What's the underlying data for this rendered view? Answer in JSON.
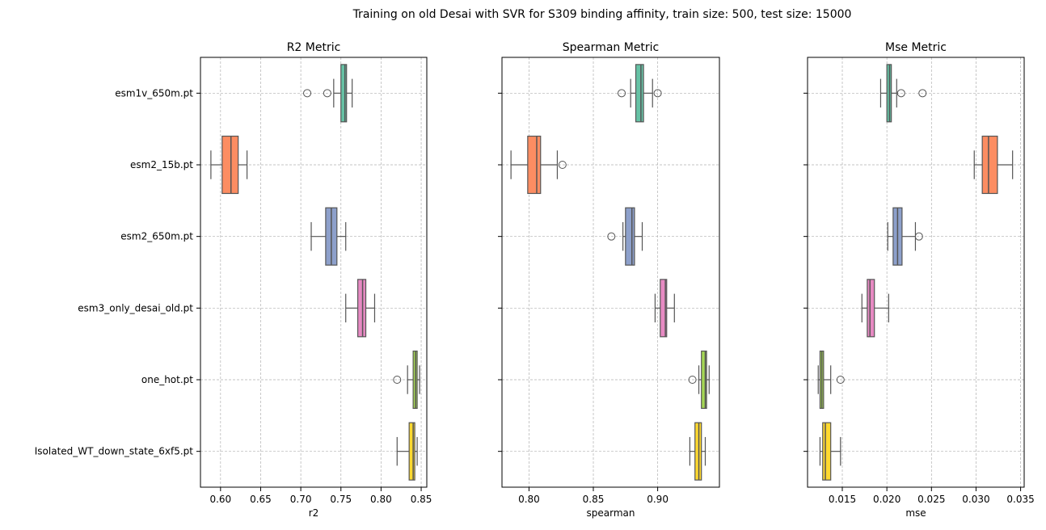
{
  "chart_data": {
    "type": "box",
    "suptitle": "Training on old Desai with SVR for S309 binding affinity, train size: 500, test size: 15000",
    "categories": [
      "esm1v_650m.pt",
      "esm2_15b.pt",
      "esm2_650m.pt",
      "esm3_only_desai_old.pt",
      "one_hot.pt",
      "Isolated_WT_down_state_6xf5.pt"
    ],
    "colors": [
      "#66c2a5",
      "#fc8d62",
      "#8da0cb",
      "#e78ac3",
      "#a6d854",
      "#ffd92f"
    ],
    "grid": true,
    "legend": "none",
    "panels": [
      {
        "title": "R2 Metric",
        "xlabel": "r2",
        "xlim": [
          0.575,
          0.857
        ],
        "xticks": [
          0.6,
          0.65,
          0.7,
          0.75,
          0.8,
          0.85
        ],
        "xtick_labels": [
          "0.60",
          "0.65",
          "0.70",
          "0.75",
          "0.80",
          "0.85"
        ],
        "boxes": [
          {
            "category": "esm1v_650m.pt",
            "whisker_low": 0.741,
            "q1": 0.75,
            "median": 0.755,
            "q3": 0.757,
            "whisker_high": 0.764,
            "outliers": [
              0.708,
              0.733
            ]
          },
          {
            "category": "esm2_15b.pt",
            "whisker_low": 0.588,
            "q1": 0.602,
            "median": 0.613,
            "q3": 0.622,
            "whisker_high": 0.633,
            "outliers": []
          },
          {
            "category": "esm2_650m.pt",
            "whisker_low": 0.713,
            "q1": 0.731,
            "median": 0.738,
            "q3": 0.745,
            "whisker_high": 0.756,
            "outliers": []
          },
          {
            "category": "esm3_only_desai_old.pt",
            "whisker_low": 0.756,
            "q1": 0.771,
            "median": 0.777,
            "q3": 0.781,
            "whisker_high": 0.792,
            "outliers": []
          },
          {
            "category": "one_hot.pt",
            "whisker_low": 0.833,
            "q1": 0.84,
            "median": 0.843,
            "q3": 0.845,
            "whisker_high": 0.848,
            "outliers": [
              0.82
            ]
          },
          {
            "category": "Isolated_WT_down_state_6xf5.pt",
            "whisker_low": 0.82,
            "q1": 0.835,
            "median": 0.84,
            "q3": 0.842,
            "whisker_high": 0.845,
            "outliers": []
          }
        ]
      },
      {
        "title": "Spearman Metric",
        "xlabel": "spearman",
        "xlim": [
          0.779,
          0.948
        ],
        "xticks": [
          0.8,
          0.85,
          0.9
        ],
        "xtick_labels": [
          "0.80",
          "0.85",
          "0.90"
        ],
        "boxes": [
          {
            "category": "esm1v_650m.pt",
            "whisker_low": 0.879,
            "q1": 0.883,
            "median": 0.887,
            "q3": 0.889,
            "whisker_high": 0.896,
            "outliers": [
              0.872,
              0.9
            ]
          },
          {
            "category": "esm2_15b.pt",
            "whisker_low": 0.786,
            "q1": 0.799,
            "median": 0.806,
            "q3": 0.809,
            "whisker_high": 0.822,
            "outliers": [
              0.826
            ]
          },
          {
            "category": "esm2_650m.pt",
            "whisker_low": 0.873,
            "q1": 0.875,
            "median": 0.88,
            "q3": 0.882,
            "whisker_high": 0.888,
            "outliers": [
              0.864
            ]
          },
          {
            "category": "esm3_only_desai_old.pt",
            "whisker_low": 0.898,
            "q1": 0.902,
            "median": 0.906,
            "q3": 0.907,
            "whisker_high": 0.913,
            "outliers": []
          },
          {
            "category": "one_hot.pt",
            "whisker_low": 0.932,
            "q1": 0.934,
            "median": 0.937,
            "q3": 0.938,
            "whisker_high": 0.94,
            "outliers": [
              0.927
            ]
          },
          {
            "category": "Isolated_WT_down_state_6xf5.pt",
            "whisker_low": 0.925,
            "q1": 0.929,
            "median": 0.932,
            "q3": 0.934,
            "whisker_high": 0.937,
            "outliers": []
          }
        ]
      },
      {
        "title": "Mse Metric",
        "xlabel": "mse",
        "xlim": [
          0.0111,
          0.0354
        ],
        "xticks": [
          0.015,
          0.02,
          0.025,
          0.03,
          0.035
        ],
        "xtick_labels": [
          "0.015",
          "0.020",
          "0.025",
          "0.030",
          "0.035"
        ],
        "boxes": [
          {
            "category": "esm1v_650m.pt",
            "whisker_low": 0.0193,
            "q1": 0.02,
            "median": 0.0203,
            "q3": 0.0205,
            "whisker_high": 0.0211,
            "outliers": [
              0.0216,
              0.024
            ]
          },
          {
            "category": "esm2_15b.pt",
            "whisker_low": 0.0298,
            "q1": 0.0307,
            "median": 0.0314,
            "q3": 0.0324,
            "whisker_high": 0.0341,
            "outliers": []
          },
          {
            "category": "esm2_650m.pt",
            "whisker_low": 0.0201,
            "q1": 0.0207,
            "median": 0.0212,
            "q3": 0.0217,
            "whisker_high": 0.0232,
            "outliers": [
              0.0236
            ]
          },
          {
            "category": "esm3_only_desai_old.pt",
            "whisker_low": 0.0172,
            "q1": 0.0178,
            "median": 0.0181,
            "q3": 0.0186,
            "whisker_high": 0.0202,
            "outliers": []
          },
          {
            "category": "one_hot.pt",
            "whisker_low": 0.0123,
            "q1": 0.0125,
            "median": 0.0127,
            "q3": 0.0129,
            "whisker_high": 0.0137,
            "outliers": [
              0.0148
            ]
          },
          {
            "category": "Isolated_WT_down_state_6xf5.pt",
            "whisker_low": 0.0125,
            "q1": 0.0128,
            "median": 0.0131,
            "q3": 0.0137,
            "whisker_high": 0.0148,
            "outliers": []
          }
        ]
      }
    ]
  }
}
